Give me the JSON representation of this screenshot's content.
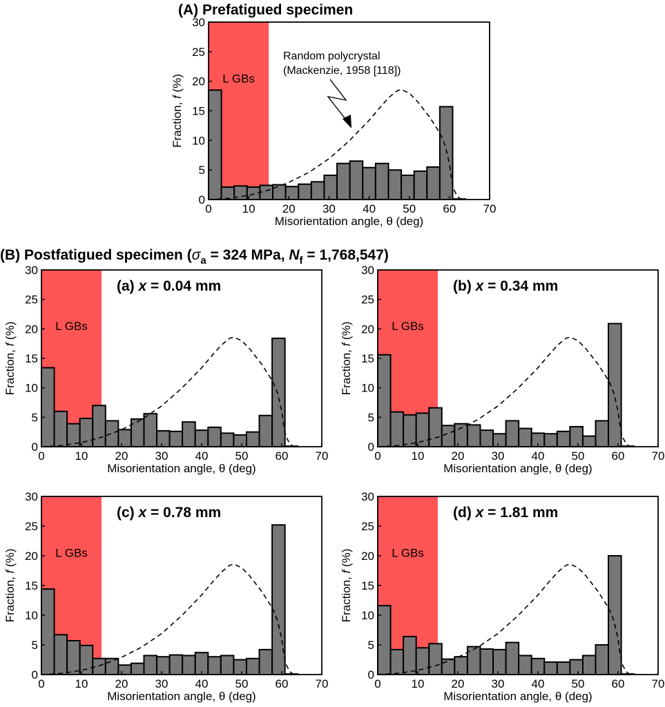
{
  "figure": {
    "title_A": "(A)  Prefatigued specimen",
    "title_B_prefix": "(B)  Postfatigued specimen (",
    "title_B_sigma": "σ",
    "title_B_sigma_sub": "a",
    "title_B_mid": " = 324 MPa, ",
    "title_B_N": "N",
    "title_B_N_sub": "f",
    "title_B_suffix": " = 1,768,547)",
    "lgb_label": "L GBs",
    "annotation_line1": "Random polycrystal",
    "annotation_line2": "(Mackenzie, 1958 [118])",
    "colors": {
      "lgb_region": "#ff5555",
      "bar_fill": "#777777",
      "bar_stroke": "#000000",
      "curve": "#000000"
    }
  },
  "chart_data": [
    {
      "id": "A",
      "type": "bar",
      "title": "(A) Prefatigued specimen",
      "panel_label": "",
      "xlabel": "Misorientation angle, θ (deg)",
      "ylabel": "Fraction, f (%)",
      "xlim": [
        0,
        70
      ],
      "ylim": [
        0,
        30
      ],
      "xticks": [
        0,
        10,
        20,
        30,
        40,
        50,
        60,
        70
      ],
      "yticks": [
        0,
        5,
        10,
        15,
        20,
        25,
        30
      ],
      "bin_width": 3.2,
      "lgb_region": [
        0,
        15
      ],
      "values": [
        18.5,
        2.1,
        2.3,
        2.1,
        2.4,
        2.5,
        2.2,
        2.6,
        3.0,
        4.1,
        6.1,
        6.5,
        5.4,
        6.1,
        5.0,
        4.1,
        4.8,
        5.5,
        15.7,
        0.1
      ],
      "annotation": true
    },
    {
      "id": "a",
      "type": "bar",
      "panel_label_prefix": "(a) ",
      "panel_label_var": "x",
      "panel_label_suffix": " = 0.04 mm",
      "xlabel": "Misorientation angle, θ (deg)",
      "ylabel": "Fraction, f (%)",
      "xlim": [
        0,
        70
      ],
      "ylim": [
        0,
        30
      ],
      "xticks": [
        0,
        10,
        20,
        30,
        40,
        50,
        60,
        70
      ],
      "yticks": [
        0,
        5,
        10,
        15,
        20,
        25,
        30
      ],
      "bin_width": 3.2,
      "lgb_region": [
        0,
        15
      ],
      "values": [
        13.4,
        6.0,
        3.9,
        4.8,
        7.0,
        4.4,
        2.9,
        4.7,
        5.6,
        2.7,
        2.6,
        4.2,
        2.8,
        3.3,
        2.3,
        2.0,
        2.5,
        5.3,
        18.4,
        0.1
      ]
    },
    {
      "id": "b",
      "type": "bar",
      "panel_label_prefix": "(b) ",
      "panel_label_var": "x",
      "panel_label_suffix": " = 0.34 mm",
      "xlabel": "Misorientation angle, θ (deg)",
      "ylabel": "Fraction, f (%)",
      "xlim": [
        0,
        70
      ],
      "ylim": [
        0,
        30
      ],
      "xticks": [
        0,
        10,
        20,
        30,
        40,
        50,
        60,
        70
      ],
      "yticks": [
        0,
        5,
        10,
        15,
        20,
        25,
        30
      ],
      "bin_width": 3.2,
      "lgb_region": [
        0,
        15
      ],
      "values": [
        15.6,
        5.9,
        5.4,
        5.7,
        6.6,
        3.6,
        3.9,
        3.7,
        2.8,
        2.2,
        4.4,
        3.1,
        2.3,
        2.2,
        2.6,
        3.4,
        1.8,
        4.4,
        20.9,
        0.1
      ]
    },
    {
      "id": "c",
      "type": "bar",
      "panel_label_prefix": "(c) ",
      "panel_label_var": "x",
      "panel_label_suffix": " =  0.78 mm",
      "xlabel": "Misorientation angle, θ (deg)",
      "ylabel": "Fraction, f (%)",
      "xlim": [
        0,
        70
      ],
      "ylim": [
        0,
        30
      ],
      "xticks": [
        0,
        10,
        20,
        30,
        40,
        50,
        60,
        70
      ],
      "yticks": [
        0,
        5,
        10,
        15,
        20,
        25,
        30
      ],
      "bin_width": 3.2,
      "lgb_region": [
        0,
        15
      ],
      "values": [
        14.4,
        6.7,
        5.7,
        4.9,
        2.7,
        2.7,
        1.6,
        1.9,
        3.2,
        3.0,
        3.3,
        3.2,
        3.7,
        3.0,
        3.2,
        2.5,
        2.7,
        4.2,
        25.2,
        0.1
      ]
    },
    {
      "id": "d",
      "type": "bar",
      "panel_label_prefix": "(d) ",
      "panel_label_var": "x",
      "panel_label_suffix": " = 1.81 mm",
      "xlabel": "Misorientation angle, θ (deg)",
      "ylabel": "Fraction, f (%)",
      "xlim": [
        0,
        70
      ],
      "ylim": [
        0,
        30
      ],
      "xticks": [
        0,
        10,
        20,
        30,
        40,
        50,
        60,
        70
      ],
      "yticks": [
        0,
        5,
        10,
        15,
        20,
        25,
        30
      ],
      "bin_width": 3.2,
      "lgb_region": [
        0,
        15
      ],
      "values": [
        11.6,
        4.2,
        6.4,
        4.5,
        5.2,
        2.6,
        3.0,
        4.7,
        4.3,
        4.2,
        5.4,
        3.2,
        2.7,
        2.1,
        2.1,
        2.5,
        3.2,
        5.0,
        20.0,
        0.1
      ]
    }
  ],
  "mackenzie_curve": {
    "name": "Random polycrystal (Mackenzie, 1958 [118])",
    "style": "dashed",
    "x": [
      0,
      5,
      10,
      15,
      20,
      25,
      30,
      35,
      40,
      43,
      45,
      47,
      48,
      50,
      52,
      55,
      57,
      58,
      59,
      60,
      60.5,
      61,
      62,
      63
    ],
    "y": [
      0,
      0.2,
      0.7,
      1.6,
      2.9,
      4.6,
      6.9,
      9.9,
      13.4,
      15.8,
      17.3,
      18.4,
      18.6,
      18.0,
      16.6,
      14.0,
      11.9,
      10.7,
      9.0,
      6.0,
      3.5,
      1.8,
      0.5,
      0
    ]
  }
}
